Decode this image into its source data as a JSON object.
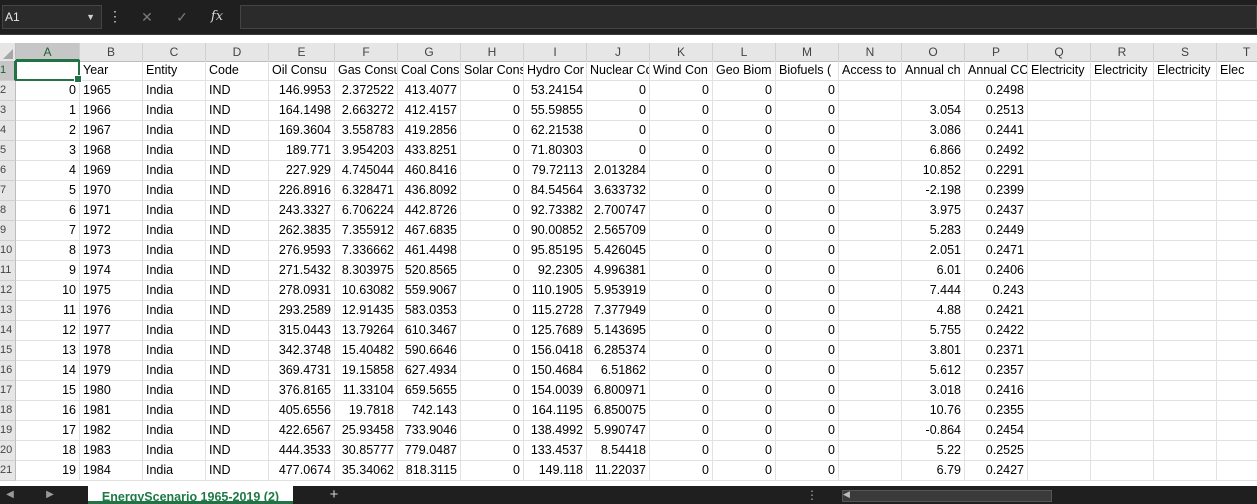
{
  "formula_bar": {
    "name_box": "A1",
    "fx_label": "fx",
    "formula_value": ""
  },
  "columns": [
    "A",
    "B",
    "C",
    "D",
    "E",
    "F",
    "G",
    "H",
    "I",
    "J",
    "K",
    "L",
    "M",
    "N",
    "O",
    "P",
    "Q",
    "R",
    "S",
    "T"
  ],
  "headers": [
    "",
    "Year",
    "Entity",
    "Code",
    "Oil Consu",
    "Gas Consu",
    "Coal Cons",
    "Solar Cons",
    "Hydro Cor",
    "Nuclear Co",
    "Wind Con",
    "Geo Biom",
    "Biofuels (",
    "Access to",
    "Annual ch",
    "Annual CC",
    "Electricity",
    "Electricity",
    "Electricity",
    "Elec"
  ],
  "rows": [
    [
      "0",
      "1965",
      "India",
      "IND",
      "146.9953",
      "2.372522",
      "413.4077",
      "0",
      "53.24154",
      "0",
      "0",
      "0",
      "0",
      "",
      "",
      "0.2498",
      "",
      "",
      "",
      ""
    ],
    [
      "1",
      "1966",
      "India",
      "IND",
      "164.1498",
      "2.663272",
      "412.4157",
      "0",
      "55.59855",
      "0",
      "0",
      "0",
      "0",
      "",
      "3.054",
      "0.2513",
      "",
      "",
      "",
      ""
    ],
    [
      "2",
      "1967",
      "India",
      "IND",
      "169.3604",
      "3.558783",
      "419.2856",
      "0",
      "62.21538",
      "0",
      "0",
      "0",
      "0",
      "",
      "3.086",
      "0.2441",
      "",
      "",
      "",
      ""
    ],
    [
      "3",
      "1968",
      "India",
      "IND",
      "189.771",
      "3.954203",
      "433.8251",
      "0",
      "71.80303",
      "0",
      "0",
      "0",
      "0",
      "",
      "6.866",
      "0.2492",
      "",
      "",
      "",
      ""
    ],
    [
      "4",
      "1969",
      "India",
      "IND",
      "227.929",
      "4.745044",
      "460.8416",
      "0",
      "79.72113",
      "2.013284",
      "0",
      "0",
      "0",
      "",
      "10.852",
      "0.2291",
      "",
      "",
      "",
      ""
    ],
    [
      "5",
      "1970",
      "India",
      "IND",
      "226.8916",
      "6.328471",
      "436.8092",
      "0",
      "84.54564",
      "3.633732",
      "0",
      "0",
      "0",
      "",
      "-2.198",
      "0.2399",
      "",
      "",
      "",
      ""
    ],
    [
      "6",
      "1971",
      "India",
      "IND",
      "243.3327",
      "6.706224",
      "442.8726",
      "0",
      "92.73382",
      "2.700747",
      "0",
      "0",
      "0",
      "",
      "3.975",
      "0.2437",
      "",
      "",
      "",
      ""
    ],
    [
      "7",
      "1972",
      "India",
      "IND",
      "262.3835",
      "7.355912",
      "467.6835",
      "0",
      "90.00852",
      "2.565709",
      "0",
      "0",
      "0",
      "",
      "5.283",
      "0.2449",
      "",
      "",
      "",
      ""
    ],
    [
      "8",
      "1973",
      "India",
      "IND",
      "276.9593",
      "7.336662",
      "461.4498",
      "0",
      "95.85195",
      "5.426045",
      "0",
      "0",
      "0",
      "",
      "2.051",
      "0.2471",
      "",
      "",
      "",
      ""
    ],
    [
      "9",
      "1974",
      "India",
      "IND",
      "271.5432",
      "8.303975",
      "520.8565",
      "0",
      "92.2305",
      "4.996381",
      "0",
      "0",
      "0",
      "",
      "6.01",
      "0.2406",
      "",
      "",
      "",
      ""
    ],
    [
      "10",
      "1975",
      "India",
      "IND",
      "278.0931",
      "10.63082",
      "559.9067",
      "0",
      "110.1905",
      "5.953919",
      "0",
      "0",
      "0",
      "",
      "7.444",
      "0.243",
      "",
      "",
      "",
      ""
    ],
    [
      "11",
      "1976",
      "India",
      "IND",
      "293.2589",
      "12.91435",
      "583.0353",
      "0",
      "115.2728",
      "7.377949",
      "0",
      "0",
      "0",
      "",
      "4.88",
      "0.2421",
      "",
      "",
      "",
      ""
    ],
    [
      "12",
      "1977",
      "India",
      "IND",
      "315.0443",
      "13.79264",
      "610.3467",
      "0",
      "125.7689",
      "5.143695",
      "0",
      "0",
      "0",
      "",
      "5.755",
      "0.2422",
      "",
      "",
      "",
      ""
    ],
    [
      "13",
      "1978",
      "India",
      "IND",
      "342.3748",
      "15.40482",
      "590.6646",
      "0",
      "156.0418",
      "6.285374",
      "0",
      "0",
      "0",
      "",
      "3.801",
      "0.2371",
      "",
      "",
      "",
      ""
    ],
    [
      "14",
      "1979",
      "India",
      "IND",
      "369.4731",
      "19.15858",
      "627.4934",
      "0",
      "150.4684",
      "6.51862",
      "0",
      "0",
      "0",
      "",
      "5.612",
      "0.2357",
      "",
      "",
      "",
      ""
    ],
    [
      "15",
      "1980",
      "India",
      "IND",
      "376.8165",
      "11.33104",
      "659.5655",
      "0",
      "154.0039",
      "6.800971",
      "0",
      "0",
      "0",
      "",
      "3.018",
      "0.2416",
      "",
      "",
      "",
      ""
    ],
    [
      "16",
      "1981",
      "India",
      "IND",
      "405.6556",
      "19.7818",
      "742.143",
      "0",
      "164.1195",
      "6.850075",
      "0",
      "0",
      "0",
      "",
      "10.76",
      "0.2355",
      "",
      "",
      "",
      ""
    ],
    [
      "17",
      "1982",
      "India",
      "IND",
      "422.6567",
      "25.93458",
      "733.9046",
      "0",
      "138.4992",
      "5.990747",
      "0",
      "0",
      "0",
      "",
      "-0.864",
      "0.2454",
      "",
      "",
      "",
      ""
    ],
    [
      "18",
      "1983",
      "India",
      "IND",
      "444.3533",
      "30.85777",
      "779.0487",
      "0",
      "133.4537",
      "8.54418",
      "0",
      "0",
      "0",
      "",
      "5.22",
      "0.2525",
      "",
      "",
      "",
      ""
    ],
    [
      "19",
      "1984",
      "India",
      "IND",
      "477.0674",
      "35.34062",
      "818.3115",
      "0",
      "149.118",
      "11.22037",
      "0",
      "0",
      "0",
      "",
      "6.79",
      "0.2427",
      "",
      "",
      "",
      ""
    ]
  ],
  "sheet_tab": "EnergyScenario 1965-2019 (2)",
  "add_sheet": "+"
}
